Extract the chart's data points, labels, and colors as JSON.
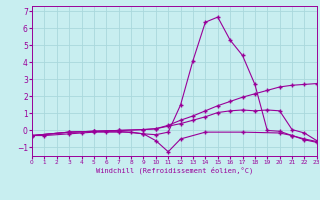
{
  "xlabel": "Windchill (Refroidissement éolien,°C)",
  "bg_color": "#c8eef0",
  "grid_color": "#aad8dc",
  "line_color": "#990099",
  "xlim": [
    0,
    23
  ],
  "ylim": [
    -1.5,
    7.3
  ],
  "xticks": [
    0,
    1,
    2,
    3,
    4,
    5,
    6,
    7,
    8,
    9,
    10,
    11,
    12,
    13,
    14,
    15,
    16,
    17,
    18,
    19,
    20,
    21,
    22,
    23
  ],
  "yticks": [
    -1,
    0,
    1,
    2,
    3,
    4,
    5,
    6,
    7
  ],
  "line1_x": [
    0,
    1,
    3,
    4,
    5,
    6,
    7,
    8,
    9,
    10,
    11,
    12,
    13,
    14,
    15,
    16,
    17,
    18,
    19,
    20,
    21,
    22,
    23
  ],
  "line1_y": [
    -0.3,
    -0.3,
    -0.2,
    -0.15,
    -0.1,
    -0.1,
    -0.1,
    -0.1,
    -0.2,
    -0.25,
    -0.1,
    1.5,
    4.1,
    6.35,
    6.65,
    5.3,
    4.4,
    2.7,
    0.0,
    -0.05,
    -0.3,
    -0.55,
    -0.7
  ],
  "line2_x": [
    0,
    3,
    5,
    7,
    9,
    10,
    11,
    12,
    13,
    14,
    15,
    16,
    17,
    18,
    19,
    20,
    21,
    22,
    23
  ],
  "line2_y": [
    -0.3,
    -0.1,
    -0.05,
    0.0,
    0.05,
    0.1,
    0.3,
    0.6,
    0.85,
    1.15,
    1.45,
    1.7,
    1.95,
    2.15,
    2.35,
    2.55,
    2.65,
    2.7,
    2.75
  ],
  "line3_x": [
    0,
    3,
    5,
    7,
    9,
    10,
    11,
    12,
    13,
    14,
    15,
    16,
    17,
    18,
    19,
    20,
    21,
    22,
    23
  ],
  "line3_y": [
    -0.3,
    -0.1,
    -0.05,
    0.0,
    0.05,
    0.1,
    0.25,
    0.4,
    0.6,
    0.8,
    1.05,
    1.15,
    1.2,
    1.15,
    1.2,
    1.15,
    0.05,
    -0.15,
    -0.6
  ],
  "line4_x": [
    0,
    3,
    5,
    7,
    9,
    10,
    11,
    12,
    14,
    17,
    20,
    21,
    22,
    23
  ],
  "line4_y": [
    -0.3,
    -0.1,
    -0.05,
    -0.05,
    -0.2,
    -0.6,
    -1.25,
    -0.5,
    -0.1,
    -0.1,
    -0.15,
    -0.3,
    -0.5,
    -0.65
  ]
}
